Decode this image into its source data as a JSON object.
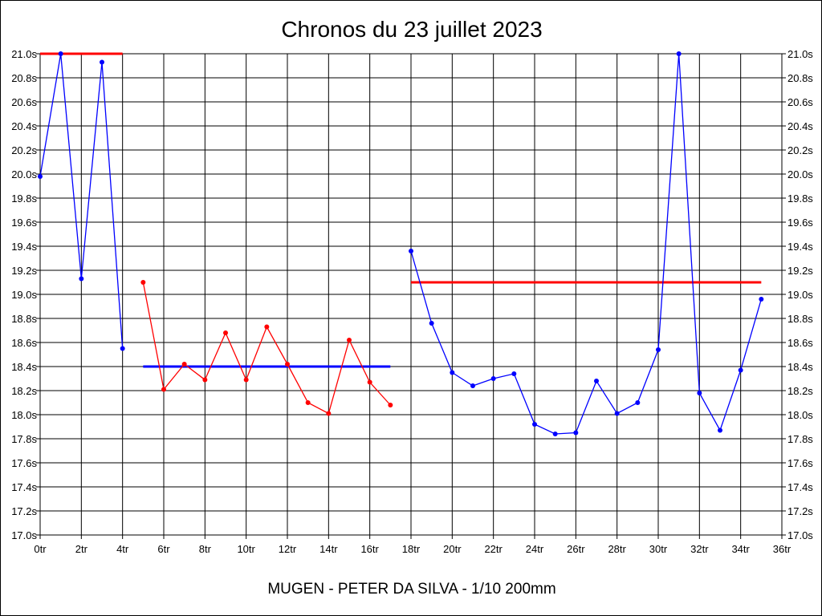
{
  "chart_data": {
    "type": "line",
    "title": "Chronos du 23 juillet 2023",
    "subtitle": "MUGEN - PETER DA SILVA - 1/10 200mm",
    "x_range": [
      0,
      36
    ],
    "y_range": [
      17.0,
      21.0
    ],
    "x_ticks": [
      "0tr",
      "2tr",
      "4tr",
      "6tr",
      "8tr",
      "10tr",
      "12tr",
      "14tr",
      "16tr",
      "18tr",
      "20tr",
      "22tr",
      "24tr",
      "26tr",
      "28tr",
      "30tr",
      "32tr",
      "34tr",
      "36tr"
    ],
    "y_ticks": [
      "17.0s",
      "17.2s",
      "17.4s",
      "17.6s",
      "17.8s",
      "18.0s",
      "18.2s",
      "18.4s",
      "18.6s",
      "18.8s",
      "19.0s",
      "19.2s",
      "19.4s",
      "19.6s",
      "19.8s",
      "20.0s",
      "20.2s",
      "20.4s",
      "20.6s",
      "20.8s",
      "21.0s"
    ],
    "grid": true,
    "series": [
      {
        "color": "#0000ff",
        "points": [
          [
            0,
            19.98
          ],
          [
            1,
            21.0
          ],
          [
            2,
            19.13
          ],
          [
            3,
            20.93
          ],
          [
            4,
            18.55
          ]
        ]
      },
      {
        "color": "#ff0000",
        "points": [
          [
            5,
            19.1
          ],
          [
            6,
            18.21
          ],
          [
            7,
            18.42
          ],
          [
            8,
            18.29
          ],
          [
            9,
            18.68
          ],
          [
            10,
            18.29
          ],
          [
            11,
            18.73
          ],
          [
            12,
            18.42
          ],
          [
            13,
            18.1
          ],
          [
            14,
            18.01
          ],
          [
            15,
            18.62
          ],
          [
            16,
            18.27
          ],
          [
            17,
            18.08
          ]
        ]
      },
      {
        "color": "#0000ff",
        "points": [
          [
            18,
            19.36
          ],
          [
            19,
            18.76
          ],
          [
            20,
            18.35
          ],
          [
            21,
            18.24
          ],
          [
            22,
            18.3
          ],
          [
            23,
            18.34
          ],
          [
            24,
            17.92
          ],
          [
            25,
            17.84
          ],
          [
            26,
            17.85
          ],
          [
            27,
            18.28
          ],
          [
            28,
            18.01
          ],
          [
            29,
            18.1
          ],
          [
            30,
            18.54
          ],
          [
            31,
            21.0
          ],
          [
            32,
            18.18
          ],
          [
            33,
            17.87
          ],
          [
            34,
            18.37
          ],
          [
            35,
            18.96
          ]
        ]
      }
    ],
    "reference_lines": [
      {
        "color": "#ff0000",
        "x": [
          0,
          4
        ],
        "y": 21.0
      },
      {
        "color": "#0000ff",
        "x": [
          5,
          17
        ],
        "y": 18.4
      },
      {
        "color": "#ff0000",
        "x": [
          18,
          35
        ],
        "y": 19.1
      }
    ]
  }
}
